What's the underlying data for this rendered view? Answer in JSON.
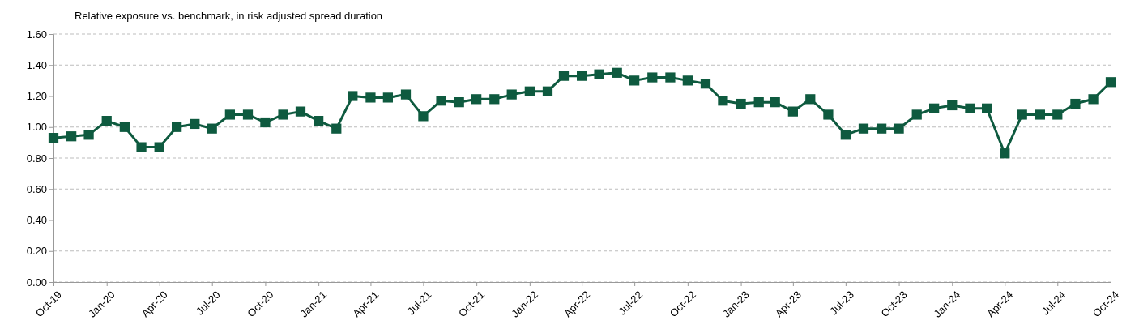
{
  "chart_data": {
    "type": "line",
    "title": "Relative exposure vs. benchmark, in risk adjusted spread duration",
    "x": [
      "2019-10",
      "2019-11",
      "2019-12",
      "2020-01",
      "2020-02",
      "2020-03",
      "2020-04",
      "2020-05",
      "2020-06",
      "2020-07",
      "2020-08",
      "2020-09",
      "2020-10",
      "2020-11",
      "2020-12",
      "2021-01",
      "2021-02",
      "2021-03",
      "2021-04",
      "2021-05",
      "2021-06",
      "2021-07",
      "2021-08",
      "2021-09",
      "2021-10",
      "2021-11",
      "2021-12",
      "2022-01",
      "2022-02",
      "2022-03",
      "2022-04",
      "2022-05",
      "2022-06",
      "2022-07",
      "2022-08",
      "2022-09",
      "2022-10",
      "2022-11",
      "2022-12",
      "2023-01",
      "2023-02",
      "2023-03",
      "2023-04",
      "2023-05",
      "2023-06",
      "2023-07",
      "2023-08",
      "2023-09",
      "2023-10",
      "2023-11",
      "2023-12",
      "2024-01",
      "2024-02",
      "2024-03",
      "2024-04",
      "2024-05",
      "2024-06",
      "2024-07",
      "2024-08",
      "2024-09",
      "2024-10"
    ],
    "series": [
      {
        "color": "#0e5a3f",
        "values": [
          0.93,
          0.94,
          0.95,
          1.04,
          1.0,
          0.87,
          0.87,
          1.0,
          1.02,
          0.99,
          1.08,
          1.08,
          1.03,
          1.08,
          1.1,
          1.04,
          0.99,
          1.2,
          1.19,
          1.19,
          1.21,
          1.07,
          1.17,
          1.16,
          1.18,
          1.18,
          1.21,
          1.23,
          1.23,
          1.33,
          1.33,
          1.34,
          1.35,
          1.3,
          1.32,
          1.32,
          1.3,
          1.28,
          1.17,
          1.15,
          1.16,
          1.16,
          1.1,
          1.18,
          1.08,
          0.95,
          0.99,
          0.99,
          0.99,
          1.08,
          1.12,
          1.14,
          1.12,
          1.12,
          0.83,
          1.08,
          1.08,
          1.08,
          1.15,
          1.18,
          1.29
        ]
      }
    ],
    "xlim": [
      "2019-10",
      "2024-10"
    ],
    "xticks": [
      {
        "value": "2019-10",
        "label": "Oct-19"
      },
      {
        "value": "2020-01",
        "label": "Jan-20"
      },
      {
        "value": "2020-04",
        "label": "Apr-20"
      },
      {
        "value": "2020-07",
        "label": "Jul-20"
      },
      {
        "value": "2020-10",
        "label": "Oct-20"
      },
      {
        "value": "2021-01",
        "label": "Jan-21"
      },
      {
        "value": "2021-04",
        "label": "Apr-21"
      },
      {
        "value": "2021-07",
        "label": "Jul-21"
      },
      {
        "value": "2021-10",
        "label": "Oct-21"
      },
      {
        "value": "2022-01",
        "label": "Jan-22"
      },
      {
        "value": "2022-04",
        "label": "Apr-22"
      },
      {
        "value": "2022-07",
        "label": "Jul-22"
      },
      {
        "value": "2022-10",
        "label": "Oct-22"
      },
      {
        "value": "2023-01",
        "label": "Jan-23"
      },
      {
        "value": "2023-04",
        "label": "Apr-23"
      },
      {
        "value": "2023-07",
        "label": "Jul-23"
      },
      {
        "value": "2023-10",
        "label": "Oct-23"
      },
      {
        "value": "2024-01",
        "label": "Jan-24"
      },
      {
        "value": "2024-04",
        "label": "Apr-24"
      },
      {
        "value": "2024-07",
        "label": "Jul-24"
      },
      {
        "value": "2024-10",
        "label": "Oct-24"
      }
    ],
    "ylim": [
      0,
      1.6
    ],
    "yticks": [
      {
        "value": 0,
        "label": "0.00"
      },
      {
        "value": 0.2,
        "label": "0.20"
      },
      {
        "value": 0.4,
        "label": "0.40"
      },
      {
        "value": 0.6,
        "label": "0.60"
      },
      {
        "value": 0.8,
        "label": "0.80"
      },
      {
        "value": 1.0,
        "label": "1.00"
      },
      {
        "value": 1.2,
        "label": "1.20"
      },
      {
        "value": 1.4,
        "label": "1.40"
      },
      {
        "value": 1.6,
        "label": "1.60"
      }
    ],
    "grid": "y",
    "marker": "square",
    "line_style": "solid"
  }
}
